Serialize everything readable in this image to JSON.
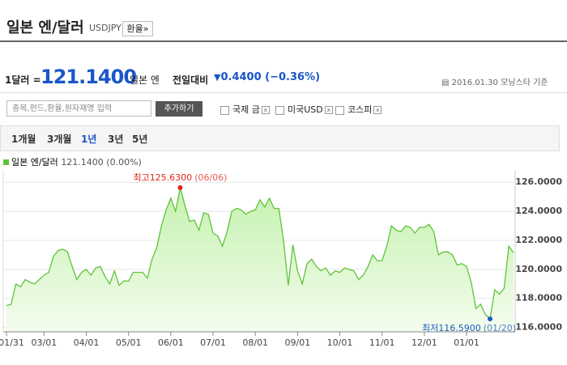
{
  "header": {
    "title": "일본 엔/달러",
    "code": "USDJPY",
    "button": "환율»"
  },
  "quote": {
    "unit_label": "1달러 =",
    "price": "121.1400",
    "currency": "일본 엔",
    "change_label": "전일대비",
    "change": "0.4400 (−0.36%)",
    "date": "2016.01.30",
    "source": "모닝스타 기준"
  },
  "search": {
    "placeholder": "종목,펀드,환율,원자재명 입력",
    "button": "추가하기",
    "compare": [
      "국제 금",
      "미국USD",
      "코스피"
    ]
  },
  "periods": [
    "1개월",
    "3개월",
    "1년",
    "3년",
    "5년"
  ],
  "selected_period": 2,
  "chart_data": {
    "type": "line",
    "series": [
      {
        "name": "일본 엔/달러",
        "color": "#5ec43a",
        "values": [
          117.5,
          117.6,
          119.0,
          118.8,
          119.3,
          119.1,
          119.0,
          119.3,
          119.6,
          119.8,
          120.9,
          121.3,
          121.4,
          121.2,
          120.2,
          119.3,
          119.8,
          120.0,
          119.6,
          120.1,
          120.2,
          119.5,
          119.0,
          119.9,
          118.9,
          119.2,
          119.2,
          119.8,
          119.8,
          119.8,
          119.4,
          120.7,
          121.5,
          123.0,
          124.1,
          124.9,
          124.0,
          125.63,
          124.4,
          123.3,
          123.4,
          122.7,
          123.9,
          123.8,
          122.5,
          122.3,
          121.6,
          122.6,
          124.0,
          124.2,
          124.1,
          123.8,
          124.0,
          124.1,
          124.8,
          124.3,
          124.9,
          124.2,
          124.2,
          122.0,
          118.9,
          121.7,
          119.9,
          119.0,
          120.4,
          120.7,
          120.2,
          119.9,
          120.1,
          119.6,
          119.9,
          119.8,
          120.1,
          120.0,
          119.9,
          119.3,
          119.6,
          120.2,
          121.0,
          120.6,
          120.6,
          121.6,
          123.0,
          122.7,
          122.6,
          123.0,
          122.9,
          122.5,
          122.9,
          122.9,
          123.1,
          122.6,
          121.0,
          121.2,
          121.2,
          121.0,
          120.3,
          120.4,
          120.2,
          119.1,
          117.3,
          117.6,
          116.9,
          116.59,
          118.6,
          118.3,
          118.7,
          121.6,
          121.14
        ]
      }
    ],
    "legend_value": "121.1400 (0.00%)",
    "categories": [
      "01/31",
      null,
      null,
      null,
      null,
      null,
      null,
      null,
      "03/01",
      null,
      null,
      null,
      null,
      null,
      null,
      null,
      null,
      "04/01",
      null,
      null,
      null,
      null,
      null,
      null,
      null,
      null,
      "05/01",
      null,
      null,
      null,
      null,
      null,
      null,
      null,
      null,
      "06/01",
      null,
      null,
      null,
      null,
      null,
      null,
      null,
      null,
      "07/01",
      null,
      null,
      null,
      null,
      null,
      null,
      null,
      null,
      "08/01",
      null,
      null,
      null,
      null,
      null,
      null,
      null,
      null,
      "09/01",
      null,
      null,
      null,
      null,
      null,
      null,
      null,
      null,
      "10/01",
      null,
      null,
      null,
      null,
      null,
      null,
      null,
      null,
      "11/01",
      null,
      null,
      null,
      null,
      null,
      null,
      null,
      null,
      "12/01",
      null,
      null,
      null,
      null,
      null,
      null,
      null,
      null,
      "01/01",
      null,
      null,
      null,
      null,
      null,
      null,
      null,
      null,
      null,
      null
    ],
    "ylim": [
      115.7,
      126.85
    ],
    "yticks": [
      {
        "value": 116,
        "label": "116.0000"
      },
      {
        "value": 118,
        "label": "118.0000"
      },
      {
        "value": 120,
        "label": "120.0000"
      },
      {
        "value": 122,
        "label": "122.0000"
      },
      {
        "value": 124,
        "label": "124.0000"
      },
      {
        "value": 126,
        "label": "126.0000"
      }
    ],
    "grid": true,
    "max_annotation": {
      "label": "최고",
      "value": "125.6300",
      "date": "(06/06)",
      "color": "#e0261b"
    },
    "min_annotation": {
      "label": "최저",
      "value": "116.5900",
      "date": "(01/20)",
      "color": "#1b5bc4"
    }
  }
}
